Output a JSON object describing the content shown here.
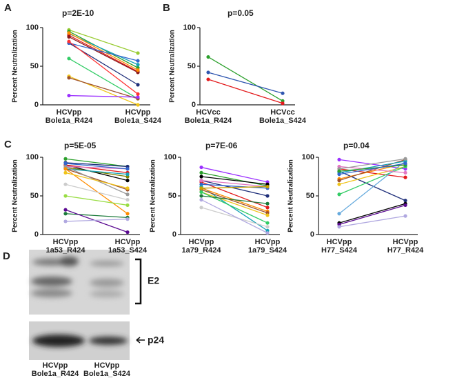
{
  "chart_data": [
    {
      "panel": "A",
      "type": "line",
      "annotation": "p=2E-10",
      "ylabel": "Percent Neutralization",
      "categories": [
        "HCVpp\nBole1a_R424",
        "HCVpp\nBole1a_S424"
      ],
      "ylim": [
        0,
        100
      ],
      "yticks": [
        0,
        50,
        100
      ],
      "series": [
        {
          "color": "#99cc33",
          "values": [
            97,
            67
          ]
        },
        {
          "color": "#2ca02c",
          "values": [
            95,
            48
          ]
        },
        {
          "color": "#17a2b8",
          "values": [
            92,
            52
          ]
        },
        {
          "color": "#e31a1c",
          "values": [
            90,
            43
          ]
        },
        {
          "color": "#8b1a1a",
          "values": [
            88,
            42
          ]
        },
        {
          "color": "#ff8c00",
          "values": [
            93,
            45
          ]
        },
        {
          "color": "#1f2f7a",
          "values": [
            80,
            26
          ]
        },
        {
          "color": "#3366cc",
          "values": [
            80,
            57
          ]
        },
        {
          "color": "#33cc66",
          "values": [
            60,
            8
          ]
        },
        {
          "color": "#f0c419",
          "values": [
            37,
            0
          ]
        },
        {
          "color": "#a0522d",
          "values": [
            35,
            8
          ]
        },
        {
          "color": "#9b30ff",
          "values": [
            12,
            10
          ]
        },
        {
          "color": "#ff3333",
          "values": [
            82,
            14
          ]
        }
      ]
    },
    {
      "panel": "B",
      "type": "line",
      "annotation": "p=0.05",
      "ylabel": "Percent Neutralization",
      "categories": [
        "HCVcc\nBole1a_R424",
        "HCVcc\nBole1a_S424"
      ],
      "ylim": [
        0,
        100
      ],
      "yticks": [
        0,
        50,
        100
      ],
      "series": [
        {
          "color": "#2ca02c",
          "values": [
            62,
            5
          ]
        },
        {
          "color": "#2f56b0",
          "values": [
            42,
            15
          ]
        },
        {
          "color": "#e31a1c",
          "values": [
            33,
            2
          ]
        }
      ]
    },
    {
      "panel": "C",
      "type": "line",
      "annotation": "p=5E-05",
      "ylabel": "Percent Neutralization",
      "categories": [
        "HCVpp\n1a53_R424",
        "HCVpp\n1a53_S424"
      ],
      "ylim": [
        0,
        100
      ],
      "yticks": [
        0,
        50,
        100
      ],
      "series": [
        {
          "color": "#2ca02c",
          "values": [
            98,
            88
          ]
        },
        {
          "color": "#1f2f7a",
          "values": [
            93,
            88
          ]
        },
        {
          "color": "#000000",
          "values": [
            90,
            70
          ]
        },
        {
          "color": "#e31a1c",
          "values": [
            90,
            80
          ]
        },
        {
          "color": "#e377c2",
          "values": [
            88,
            85
          ]
        },
        {
          "color": "#808000",
          "values": [
            87,
            75
          ]
        },
        {
          "color": "#17a2b8",
          "values": [
            85,
            78
          ]
        },
        {
          "color": "#a0522d",
          "values": [
            85,
            58
          ]
        },
        {
          "color": "#999999",
          "values": [
            88,
            52
          ]
        },
        {
          "color": "#ff8c00",
          "values": [
            85,
            27
          ]
        },
        {
          "color": "#3366cc",
          "values": [
            92,
            85
          ]
        },
        {
          "color": "#99dd44",
          "values": [
            50,
            38
          ]
        },
        {
          "color": "#cccccc",
          "values": [
            65,
            45
          ]
        },
        {
          "color": "#1b7a3a",
          "values": [
            27,
            22
          ]
        },
        {
          "color": "#5b0a91",
          "values": [
            32,
            3
          ]
        },
        {
          "color": "#b0a8e0",
          "values": [
            17,
            20
          ]
        },
        {
          "color": "#f0c419",
          "values": [
            80,
            60
          ]
        }
      ]
    },
    {
      "type": "line",
      "annotation": "p=7E-06",
      "ylabel": "Percent Neutralization",
      "categories": [
        "HCVpp\n1a79_R424",
        "HCVpp\n1a79_S424"
      ],
      "ylim": [
        0,
        100
      ],
      "yticks": [
        0,
        50,
        100
      ],
      "series": [
        {
          "color": "#9b30ff",
          "values": [
            87,
            68
          ]
        },
        {
          "color": "#2ca02c",
          "values": [
            80,
            63
          ]
        },
        {
          "color": "#000000",
          "values": [
            75,
            65
          ]
        },
        {
          "color": "#1f2f7a",
          "values": [
            70,
            50
          ]
        },
        {
          "color": "#e31a1c",
          "values": [
            68,
            35
          ]
        },
        {
          "color": "#3366cc",
          "values": [
            65,
            60
          ]
        },
        {
          "color": "#17a2b8",
          "values": [
            62,
            5
          ]
        },
        {
          "color": "#ff8c00",
          "values": [
            60,
            30
          ]
        },
        {
          "color": "#a0522d",
          "values": [
            58,
            28
          ]
        },
        {
          "color": "#f0c419",
          "values": [
            55,
            25
          ]
        },
        {
          "color": "#e377c2",
          "values": [
            70,
            62
          ]
        },
        {
          "color": "#cccccc",
          "values": [
            35,
            10
          ]
        },
        {
          "color": "#b0a8e0",
          "values": [
            45,
            2
          ]
        },
        {
          "color": "#33cc66",
          "values": [
            55,
            15
          ]
        },
        {
          "color": "#1b7a3a",
          "values": [
            50,
            40
          ]
        },
        {
          "color": "#c8a000",
          "values": [
            60,
            62
          ]
        }
      ]
    },
    {
      "type": "line",
      "annotation": "p=0.04",
      "ylabel": "Percent Neutralization",
      "categories": [
        "HCVpp\nH77_S424",
        "HCVpp\nH77_R424"
      ],
      "ylim": [
        0,
        100
      ],
      "yticks": [
        0,
        50,
        100
      ],
      "series": [
        {
          "color": "#9b30ff",
          "values": [
            97,
            85
          ]
        },
        {
          "color": "#e31a1c",
          "values": [
            85,
            74
          ]
        },
        {
          "color": "#1f2f7a",
          "values": [
            82,
            44
          ]
        },
        {
          "color": "#ff8c00",
          "values": [
            72,
            92
          ]
        },
        {
          "color": "#a0522d",
          "values": [
            70,
            97
          ]
        },
        {
          "color": "#f0c419",
          "values": [
            65,
            88
          ]
        },
        {
          "color": "#33cc66",
          "values": [
            52,
            88
          ]
        },
        {
          "color": "#66aadd",
          "values": [
            27,
            95
          ]
        },
        {
          "color": "#000000",
          "values": [
            15,
            40
          ]
        },
        {
          "color": "#5b0a91",
          "values": [
            13,
            38
          ]
        },
        {
          "color": "#b0a8e0",
          "values": [
            10,
            24
          ]
        },
        {
          "color": "#17a2b8",
          "values": [
            80,
            95
          ]
        },
        {
          "color": "#e377c2",
          "values": [
            88,
            80
          ]
        },
        {
          "color": "#999999",
          "values": [
            85,
            98
          ]
        },
        {
          "color": "#2ca02c",
          "values": [
            82,
            90
          ]
        },
        {
          "color": "#3366cc",
          "values": [
            78,
            92
          ]
        }
      ]
    }
  ],
  "blot": {
    "panel": "D",
    "bands": [
      "E2",
      "p24"
    ],
    "lanes": [
      "HCVpp\nBole1a_R424",
      "HCVpp\nBole1a_S424"
    ]
  }
}
